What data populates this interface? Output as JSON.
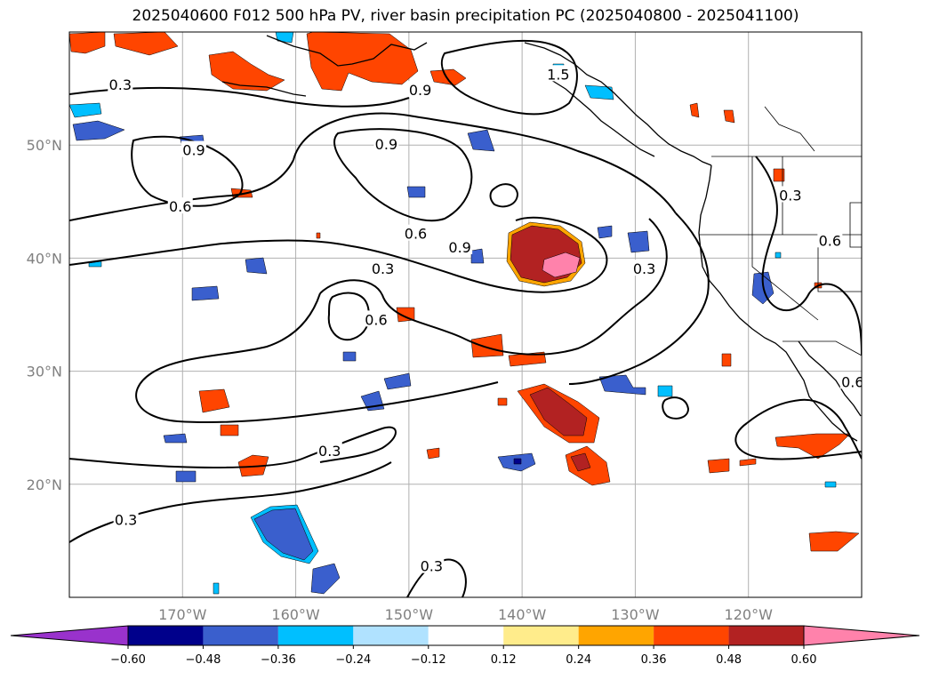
{
  "title": "2025040600 F012 500 hPa PV, river basin precipitation PC (2025040800 - 2025041100)",
  "map": {
    "lon_range": [
      -180,
      -110
    ],
    "lat_range": [
      10,
      60
    ],
    "lat_labels": [
      "50°N",
      "40°N",
      "30°N",
      "20°N"
    ],
    "lat_values": [
      50,
      40,
      30,
      20
    ],
    "lon_labels": [
      "170°W",
      "160°W",
      "150°W",
      "140°W",
      "130°W",
      "120°W"
    ],
    "lon_values": [
      -170,
      -160,
      -150,
      -140,
      -130,
      -120
    ],
    "grid": true
  },
  "contour_labels": [
    {
      "text": "0.3",
      "lon": -175.5,
      "lat": 55.3
    },
    {
      "text": "0.9",
      "lon": -169,
      "lat": 49.5
    },
    {
      "text": "0.9",
      "lon": -149,
      "lat": 54.8
    },
    {
      "text": "0.9",
      "lon": -152,
      "lat": 50
    },
    {
      "text": "1.5",
      "lon": -136.8,
      "lat": 56.2
    },
    {
      "text": "0.6",
      "lon": -170.2,
      "lat": 44.5
    },
    {
      "text": "0.6",
      "lon": -149.4,
      "lat": 42.1
    },
    {
      "text": "0.9",
      "lon": -145.5,
      "lat": 40.9
    },
    {
      "text": "0.3",
      "lon": -152.3,
      "lat": 39
    },
    {
      "text": "0.3",
      "lon": -129.2,
      "lat": 39
    },
    {
      "text": "0.3",
      "lon": -116.3,
      "lat": 45.5
    },
    {
      "text": "0.6",
      "lon": -112.8,
      "lat": 41.5
    },
    {
      "text": "0.6",
      "lon": -152.9,
      "lat": 34.5
    },
    {
      "text": "0.6",
      "lon": -110.8,
      "lat": 29
    },
    {
      "text": "0.3",
      "lon": -157,
      "lat": 22.9
    },
    {
      "text": "0.3",
      "lon": -175,
      "lat": 16.8
    },
    {
      "text": "0.3",
      "lon": -148,
      "lat": 12.7
    }
  ],
  "colorbar": {
    "ticks": [
      "−0.60",
      "−0.48",
      "−0.36",
      "−0.24",
      "−0.12",
      "0.12",
      "0.24",
      "0.36",
      "0.48",
      "0.60"
    ],
    "colors": [
      "#9932cc",
      "#00008b",
      "#3a5fcd",
      "#00bfff",
      "#b0e2ff",
      "#ffffff",
      "#ffec8b",
      "#ffa500",
      "#ff4500",
      "#b22222",
      "#ff82ab"
    ]
  }
}
